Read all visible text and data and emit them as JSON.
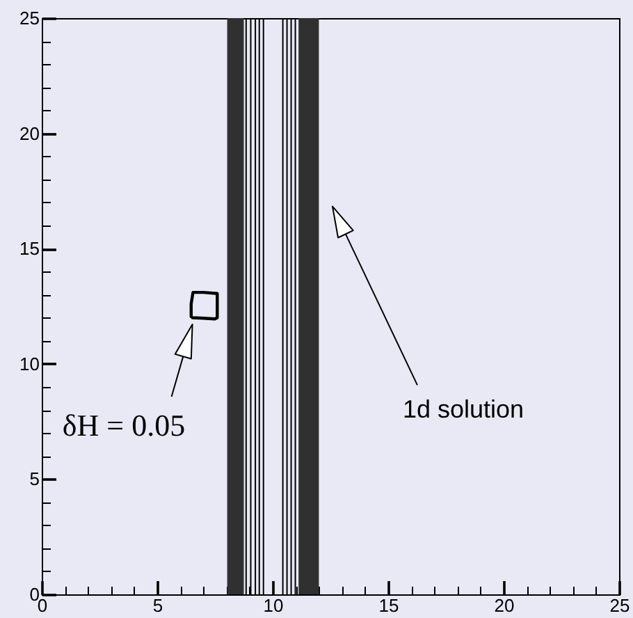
{
  "chart_data": {
    "type": "line",
    "xlim": [
      0,
      25
    ],
    "ylim": [
      0,
      25
    ],
    "xticks": [
      0,
      {
        "value": 1,
        "label": null
      },
      {
        "value": 2,
        "label": null
      },
      {
        "value": 3,
        "label": null
      },
      {
        "value": 4,
        "label": null
      },
      5,
      {
        "value": 6,
        "label": null
      },
      {
        "value": 7,
        "label": null
      },
      {
        "value": 8,
        "label": null
      },
      {
        "value": 9,
        "label": null
      },
      10,
      {
        "value": 11,
        "label": null
      },
      {
        "value": 12,
        "label": null
      },
      {
        "value": 13,
        "label": null
      },
      {
        "value": 14,
        "label": null
      },
      15,
      {
        "value": 16,
        "label": null
      },
      {
        "value": 17,
        "label": null
      },
      {
        "value": 18,
        "label": null
      },
      {
        "value": 19,
        "label": null
      },
      20,
      {
        "value": 21,
        "label": null
      },
      {
        "value": 22,
        "label": null
      },
      {
        "value": 23,
        "label": null
      },
      {
        "value": 24,
        "label": null
      },
      25
    ],
    "yticks": [
      0,
      {
        "value": 1,
        "label": null
      },
      {
        "value": 2,
        "label": null
      },
      {
        "value": 3,
        "label": null
      },
      {
        "value": 4,
        "label": null
      },
      5,
      {
        "value": 6,
        "label": null
      },
      {
        "value": 7,
        "label": null
      },
      {
        "value": 8,
        "label": null
      },
      {
        "value": 9,
        "label": null
      },
      10,
      {
        "value": 11,
        "label": null
      },
      {
        "value": 12,
        "label": null
      },
      {
        "value": 13,
        "label": null
      },
      {
        "value": 14,
        "label": null
      },
      15,
      {
        "value": 16,
        "label": null
      },
      {
        "value": 17,
        "label": null
      },
      {
        "value": 18,
        "label": null
      },
      {
        "value": 19,
        "label": null
      },
      20,
      {
        "value": 21,
        "label": null
      },
      {
        "value": 22,
        "label": null
      },
      {
        "value": 23,
        "label": null
      },
      {
        "value": 24,
        "label": null
      },
      25
    ],
    "series": [
      {
        "color": "#000000",
        "x": [
          6.47,
          6.47,
          6.55,
          7.0,
          7.6,
          7.6,
          7.5,
          7.0,
          6.53
        ],
        "values": [
          12.05,
          12.6,
          13.1,
          13.1,
          13.05,
          12.0,
          11.95,
          11.98,
          12.0
        ]
      }
    ],
    "bands": [
      {
        "axis": "x",
        "from": 8.03,
        "to": 8.75,
        "color": "#303030"
      },
      {
        "axis": "x",
        "from": 11.12,
        "to": 12.0,
        "color": "#303030"
      }
    ],
    "ref_lines": [
      {
        "axis": "x",
        "value": 8.85,
        "color": "#000000"
      },
      {
        "axis": "x",
        "value": 9.05,
        "color": "#000000"
      },
      {
        "axis": "x",
        "value": 9.25,
        "color": "#000000"
      },
      {
        "axis": "x",
        "value": 9.42,
        "color": "#000000"
      },
      {
        "axis": "x",
        "value": 9.6,
        "color": "#000000"
      },
      {
        "axis": "x",
        "value": 10.44,
        "color": "#000000"
      },
      {
        "axis": "x",
        "value": 10.62,
        "color": "#000000"
      },
      {
        "axis": "x",
        "value": 10.8,
        "color": "#000000"
      },
      {
        "axis": "x",
        "value": 10.98,
        "color": "#000000"
      }
    ],
    "annotations": [
      "δH = 0.05",
      "1d solution"
    ]
  }
}
